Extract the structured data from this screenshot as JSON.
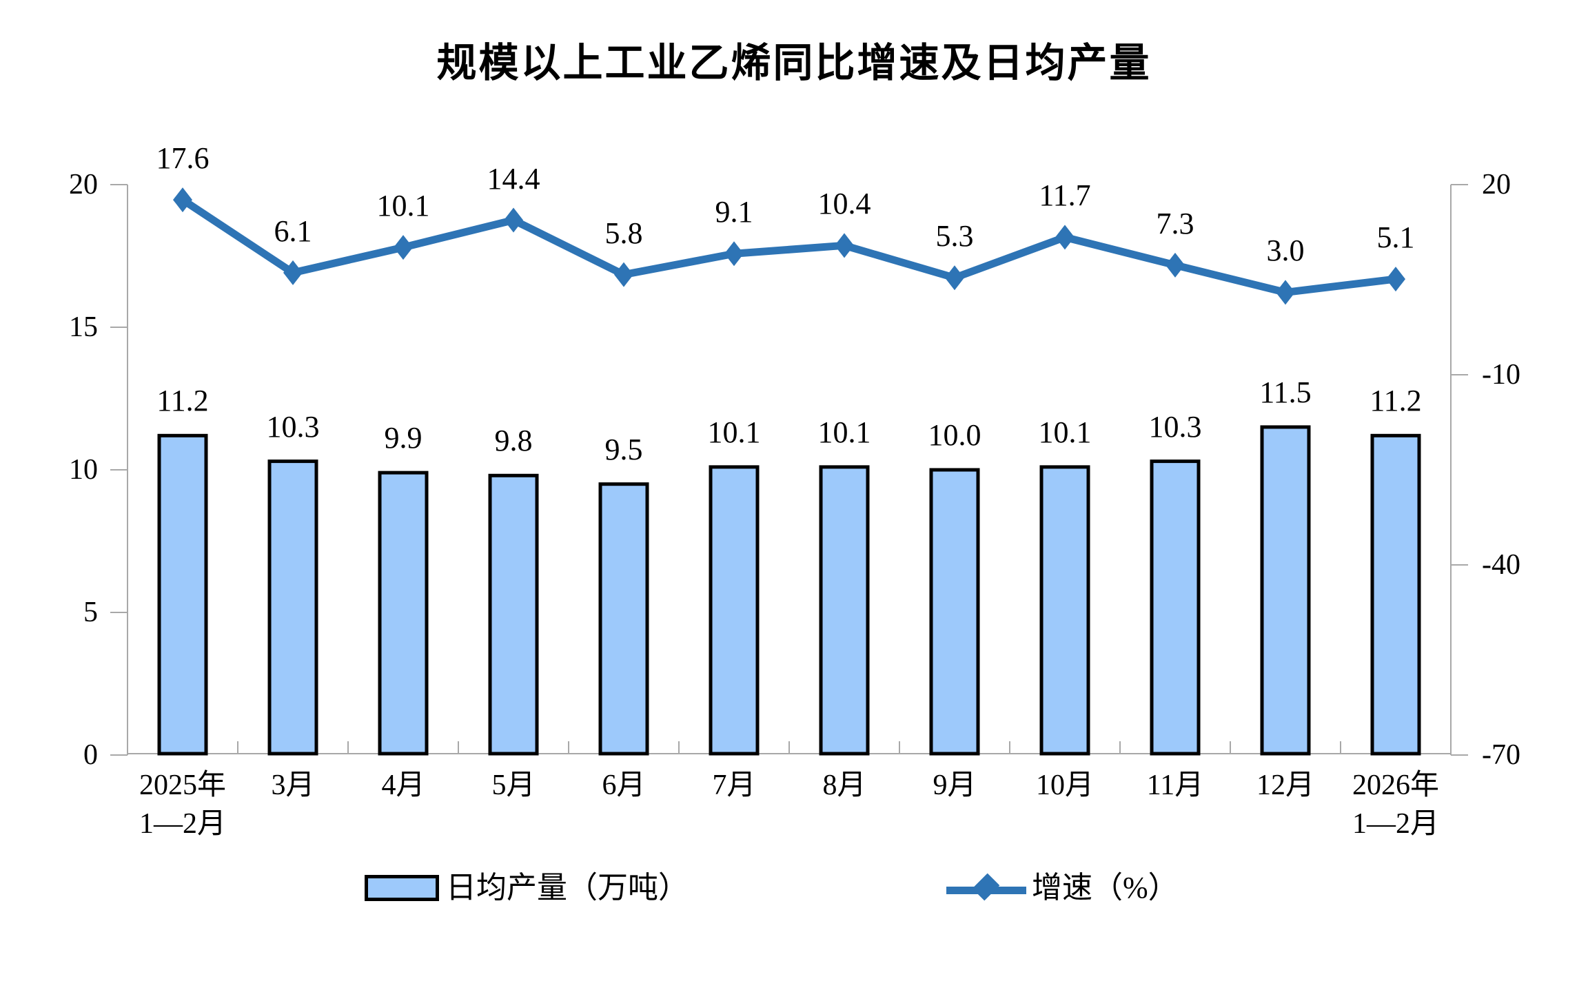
{
  "title": "规模以上工业乙烯同比增速及日均产量",
  "chart_data": {
    "type": "bar",
    "subtype": "bar-and-line-combo",
    "categories": [
      [
        "2025年",
        "1—2月"
      ],
      [
        "3月"
      ],
      [
        "4月"
      ],
      [
        "5月"
      ],
      [
        "6月"
      ],
      [
        "7月"
      ],
      [
        "8月"
      ],
      [
        "9月"
      ],
      [
        "10月"
      ],
      [
        "11月"
      ],
      [
        "12月"
      ],
      [
        "2026年",
        "1—2月"
      ]
    ],
    "series": [
      {
        "name": "日均产量（万吨）",
        "type": "bar",
        "axis": "left",
        "values": [
          11.2,
          10.3,
          9.9,
          9.8,
          9.5,
          10.1,
          10.1,
          10.0,
          10.1,
          10.3,
          11.5,
          11.2
        ],
        "labels": [
          "11.2",
          "10.3",
          "9.9",
          "9.8",
          "9.5",
          "10.1",
          "10.1",
          "10.0",
          "10.1",
          "10.3",
          "11.5",
          "11.2"
        ],
        "fill": "#9DC9FB",
        "stroke": "#000000"
      },
      {
        "name": "增速（%）",
        "type": "line",
        "axis": "right",
        "values": [
          17.6,
          6.1,
          10.1,
          14.4,
          5.8,
          9.1,
          10.4,
          5.3,
          11.7,
          7.3,
          3.0,
          5.1
        ],
        "labels": [
          "17.6",
          "6.1",
          "10.1",
          "14.4",
          "5.8",
          "9.1",
          "10.4",
          "5.3",
          "11.7",
          "7.3",
          "3.0",
          "5.1"
        ],
        "color": "#2E74B5"
      }
    ],
    "left_axis": {
      "range": [
        0,
        20
      ],
      "ticks": [
        0,
        5,
        10,
        15,
        20
      ],
      "tick_labels": [
        "0",
        "5",
        "10",
        "15",
        "20"
      ]
    },
    "right_axis": {
      "range": [
        -70,
        20
      ],
      "ticks": [
        20,
        -10,
        -40,
        -70
      ],
      "tick_labels": [
        "20",
        "-10",
        "-40",
        "-70"
      ]
    },
    "grid": "off",
    "legend_position": "bottom",
    "axis_color": "#A8A8A8"
  }
}
